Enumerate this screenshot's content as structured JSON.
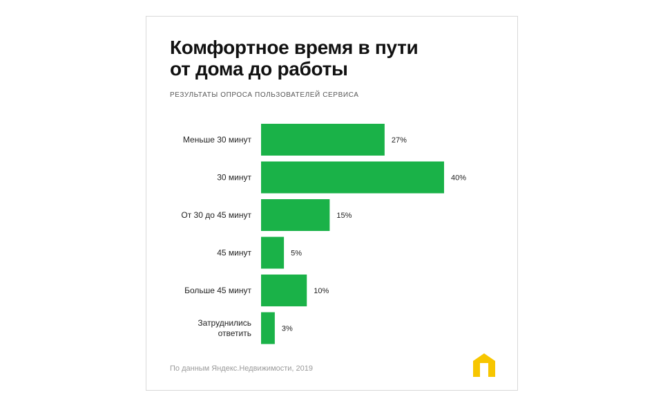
{
  "title_lines": [
    "Комфортное время в пути",
    "от дома до работы"
  ],
  "subtitle": "РЕЗУЛЬТАТЫ ОПРОСА ПОЛЬЗОВАТЕЛЕЙ СЕРВИСА",
  "source": "По данным Яндекс.Недвижимости, 2019",
  "colors": {
    "bar": "#1ab248",
    "logo": "#f7c600"
  },
  "logo_icon": "house-icon",
  "chart_data": {
    "type": "bar",
    "orientation": "horizontal",
    "title": "Комфортное время в пути от дома до работы",
    "subtitle": "РЕЗУЛЬТАТЫ ОПРОСА ПОЛЬЗОВАТЕЛЕЙ СЕРВИСА",
    "categories": [
      [
        "Меньше 30 минут"
      ],
      [
        "30 минут"
      ],
      [
        "От 30 до 45 минут"
      ],
      [
        "45 минут"
      ],
      [
        "Больше 45 минут"
      ],
      [
        "Затруднились",
        "ответить"
      ]
    ],
    "values": [
      27,
      40,
      15,
      5,
      10,
      3
    ],
    "value_labels": [
      "27%",
      "40%",
      "15%",
      "5%",
      "10%",
      "3%"
    ],
    "unit": "%",
    "xlim": [
      0,
      40
    ],
    "grid": false,
    "legend": "none"
  }
}
